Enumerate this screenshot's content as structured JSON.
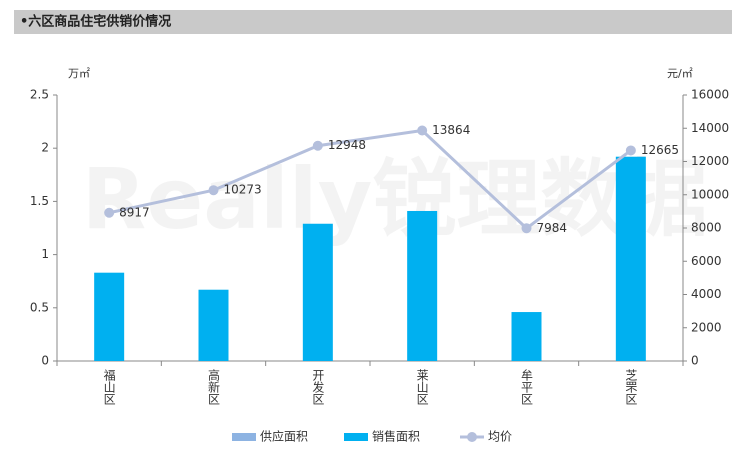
{
  "chart_data": {
    "type": "bar-line",
    "title": "•六区商品住宅供销价情况",
    "watermark": "Really锐理数据",
    "y_unit": "万㎡",
    "y2_unit": "元/㎡",
    "categories": [
      "福山区",
      "高新区",
      "开发区",
      "莱山区",
      "牟平区",
      "芝罘区"
    ],
    "series": [
      {
        "name": "供应面积",
        "color": "#8db3e2",
        "kind": "bar",
        "values": [
          0,
          0,
          0,
          0,
          0,
          0
        ]
      },
      {
        "name": "销售面积",
        "color": "#00b0f0",
        "kind": "bar",
        "values": [
          0.83,
          0.67,
          1.29,
          1.41,
          0.46,
          1.92
        ]
      },
      {
        "name": "均价",
        "color": "#b4bfdc",
        "kind": "line",
        "axis": "y2",
        "values": [
          8917,
          10273,
          12948,
          13864,
          7984,
          12665
        ]
      }
    ],
    "ylim": [
      0,
      2.5
    ],
    "yticks": [
      0,
      0.5,
      1,
      1.5,
      2,
      2.5
    ],
    "y2lim": [
      0,
      16000
    ],
    "y2ticks": [
      0,
      2000,
      4000,
      6000,
      8000,
      10000,
      12000,
      14000,
      16000
    ],
    "legend": "bottom"
  }
}
